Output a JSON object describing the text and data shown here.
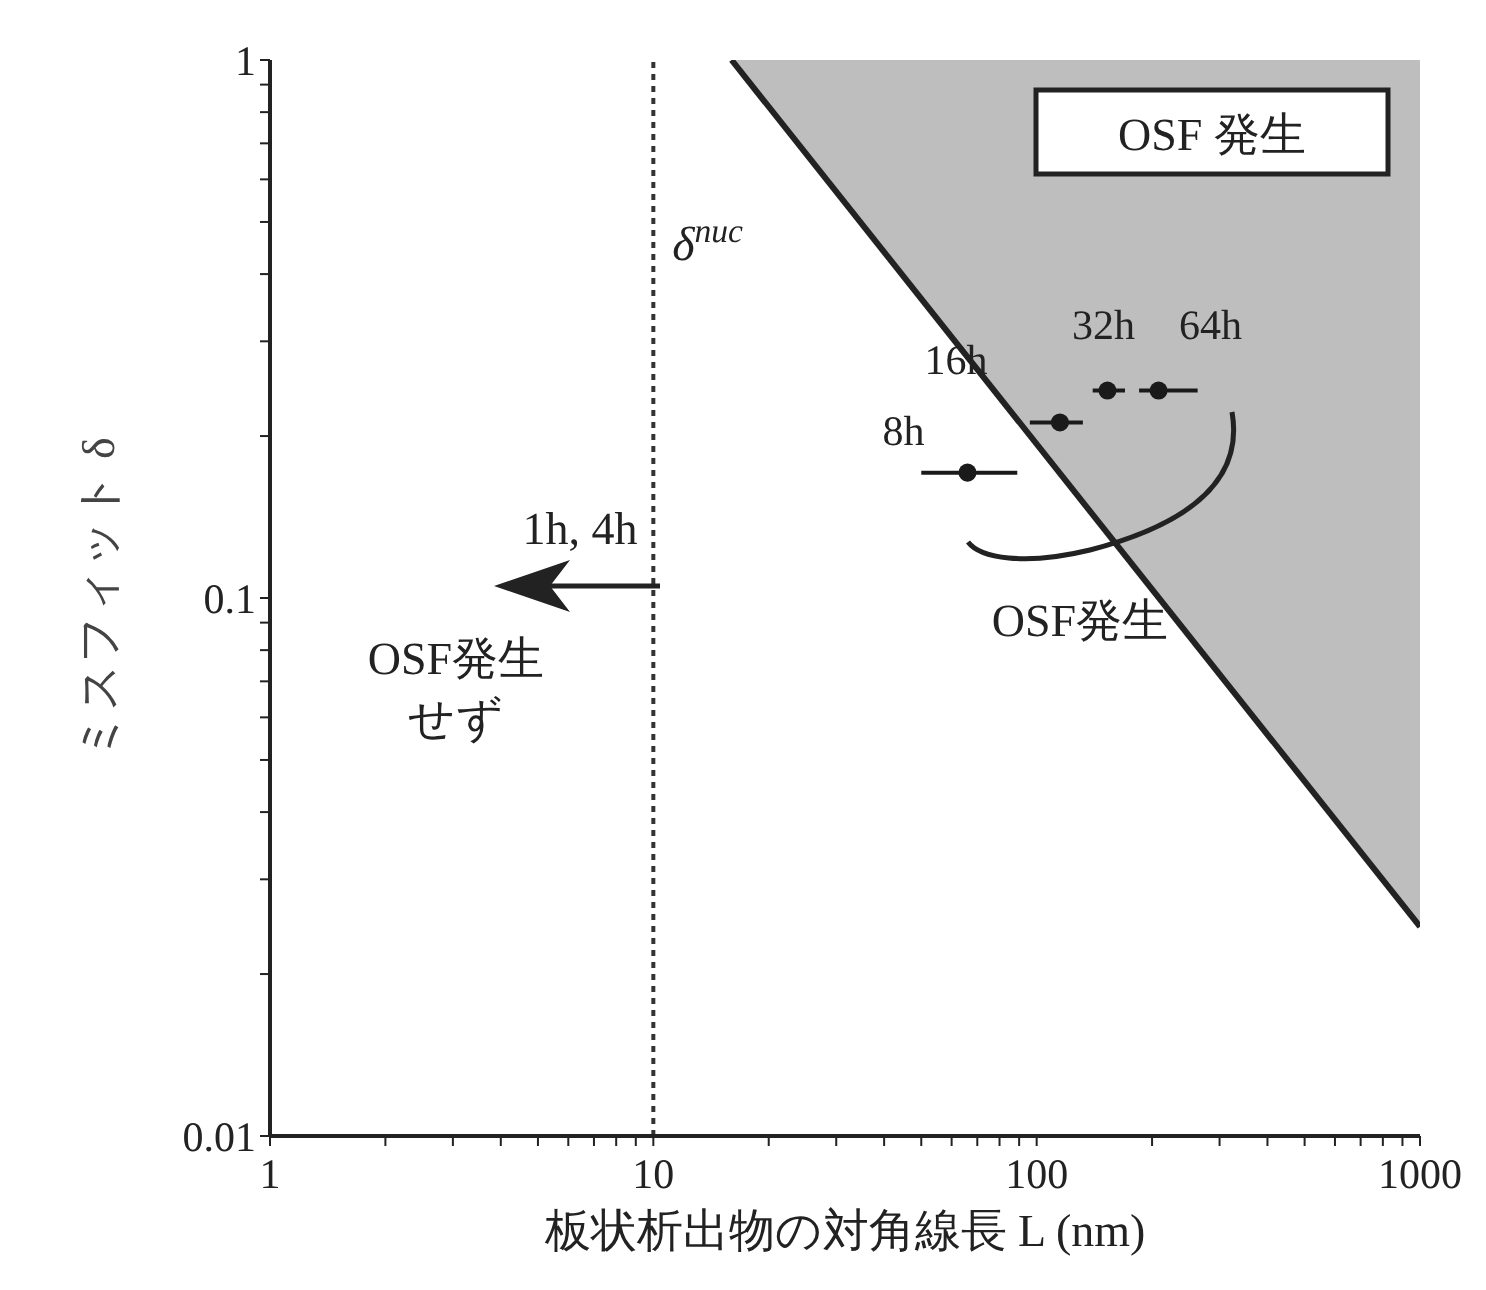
{
  "chart_data": {
    "type": "scatter",
    "xlabel": "板状析出物の対角線長 L (nm)",
    "ylabel": "ミスフィット δ",
    "log": "xy",
    "marker": "circle",
    "xlim": [
      1,
      1000
    ],
    "ylim": [
      0.01,
      1
    ],
    "xticks": [
      1,
      {
        "value": 2,
        "label": null
      },
      {
        "value": 3,
        "label": null
      },
      {
        "value": 4,
        "label": null
      },
      {
        "value": 5,
        "label": null
      },
      {
        "value": 6,
        "label": null
      },
      {
        "value": 7,
        "label": null
      },
      {
        "value": 8,
        "label": null
      },
      {
        "value": 9,
        "label": null
      },
      10,
      {
        "value": 20,
        "label": null
      },
      {
        "value": 30,
        "label": null
      },
      {
        "value": 40,
        "label": null
      },
      {
        "value": 50,
        "label": null
      },
      {
        "value": 60,
        "label": null
      },
      {
        "value": 70,
        "label": null
      },
      {
        "value": 80,
        "label": null
      },
      {
        "value": 90,
        "label": null
      },
      100,
      {
        "value": 200,
        "label": null
      },
      {
        "value": 300,
        "label": null
      },
      {
        "value": 400,
        "label": null
      },
      {
        "value": 500,
        "label": null
      },
      {
        "value": 600,
        "label": null
      },
      {
        "value": 700,
        "label": null
      },
      {
        "value": 800,
        "label": null
      },
      {
        "value": 900,
        "label": null
      },
      1000
    ],
    "yticks": [
      0.01,
      {
        "value": 0.02,
        "label": null
      },
      {
        "value": 0.03,
        "label": null
      },
      {
        "value": 0.04,
        "label": null
      },
      {
        "value": 0.05,
        "label": null
      },
      {
        "value": 0.06,
        "label": null
      },
      {
        "value": 0.07,
        "label": null
      },
      {
        "value": 0.08,
        "label": null
      },
      {
        "value": 0.09,
        "label": null
      },
      0.1,
      {
        "value": 0.2,
        "label": null
      },
      {
        "value": 0.3,
        "label": null
      },
      {
        "value": 0.4,
        "label": null
      },
      {
        "value": 0.5,
        "label": null
      },
      {
        "value": 0.6,
        "label": null
      },
      {
        "value": 0.7,
        "label": null
      },
      {
        "value": 0.8,
        "label": null
      },
      {
        "value": 0.9,
        "label": null
      },
      1
    ],
    "series": [
      {
        "x": [
          66,
          115,
          153,
          208
        ],
        "values": [
          0.171,
          0.212,
          0.243,
          0.243
        ],
        "xerrors": [
          [
            50,
            89
          ],
          [
            96,
            132
          ],
          [
            140,
            170
          ],
          [
            185,
            263
          ]
        ],
        "color": "#1a1a1a"
      },
      {
        "type": "line",
        "name": "δ$^{nuc}$",
        "x": [
          16,
          1000
        ],
        "values": [
          1,
          0.0245
        ],
        "lower": [
          1,
          0.0245
        ],
        "upper": [
          1,
          1
        ],
        "marker": "none",
        "color": "#222222"
      }
    ],
    "ref_lines": [
      {
        "axis": "x",
        "value": 10,
        "line_style": "dotted",
        "color": "#333333"
      }
    ],
    "annotations": [
      "OSF 発生",
      "1h, 4h",
      "OSF発生せず",
      "OSF発生",
      {
        "text": "8h",
        "x": 66,
        "y": 0.171
      },
      {
        "text": "16h",
        "x": 115,
        "y": 0.212
      },
      {
        "text": "32h",
        "x": 153,
        "y": 0.243
      },
      {
        "text": "64h",
        "x": 208,
        "y": 0.243
      }
    ]
  }
}
